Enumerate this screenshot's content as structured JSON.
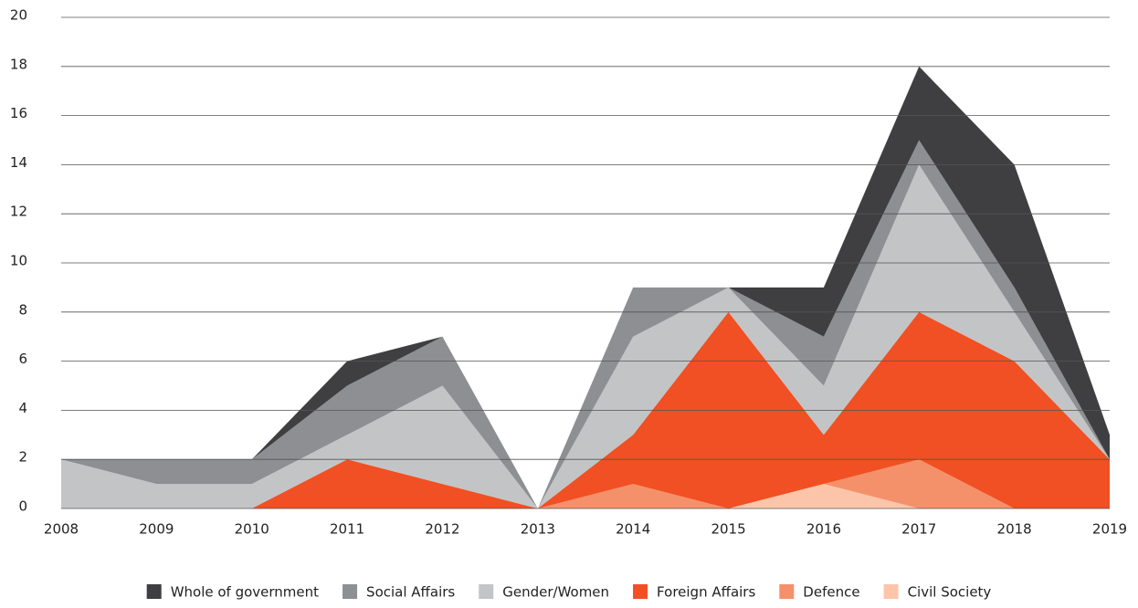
{
  "chart_data": {
    "type": "stacked_area",
    "categories": [
      "2008",
      "2009",
      "2010",
      "2011",
      "2012",
      "2013",
      "2014",
      "2015",
      "2016",
      "2017",
      "2018",
      "2019"
    ],
    "series": [
      {
        "name": "Civil Society",
        "color": "#fcc5a9",
        "values": [
          0,
          0,
          0,
          0,
          0,
          0,
          0,
          0,
          1,
          0,
          0,
          0
        ]
      },
      {
        "name": "Defence",
        "color": "#f5916a",
        "values": [
          0,
          0,
          0,
          0,
          0,
          0,
          1,
          0,
          0,
          2,
          0,
          0
        ]
      },
      {
        "name": "Foreign Affairs",
        "color": "#f05023",
        "values": [
          0,
          0,
          0,
          2,
          1,
          0,
          2,
          8,
          2,
          6,
          6,
          2
        ]
      },
      {
        "name": "Gender/Women",
        "color": "#c3c4c6",
        "values": [
          2,
          1,
          1,
          1,
          4,
          0,
          4,
          1,
          2,
          6,
          2,
          0
        ]
      },
      {
        "name": "Social Affairs",
        "color": "#8e8f92",
        "values": [
          0,
          1,
          1,
          2,
          2,
          0,
          2,
          0,
          2,
          1,
          1,
          0
        ]
      },
      {
        "name": "Whole of government",
        "color": "#3f3f41",
        "values": [
          0,
          0,
          0,
          1,
          0,
          0,
          0,
          0,
          2,
          3,
          5,
          1
        ]
      }
    ],
    "ylim": [
      0,
      20
    ],
    "yticks": [
      0,
      2,
      4,
      6,
      8,
      10,
      12,
      14,
      16,
      18,
      20
    ],
    "grid": true,
    "legend": "bottom"
  }
}
